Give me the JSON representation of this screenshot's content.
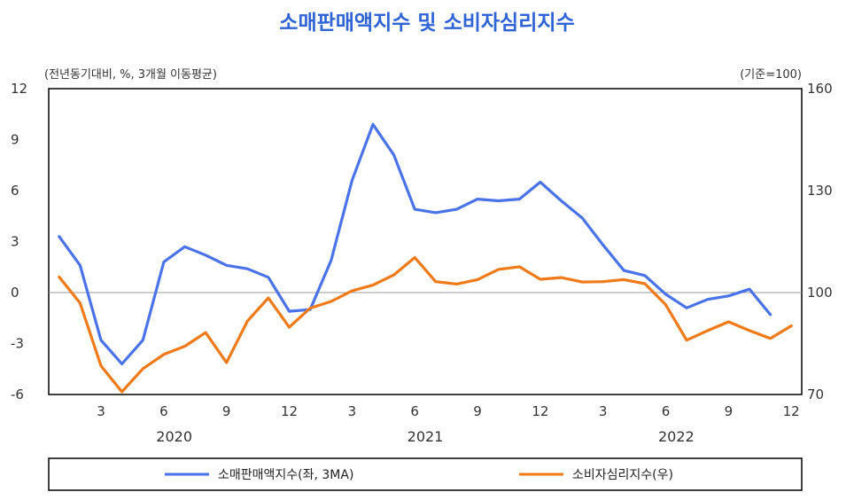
{
  "chart_data": {
    "type": "line",
    "title": "소매판매액지수 및 소비자심리지수",
    "left_unit": "(전년동기대비, %, 3개월 이동평균)",
    "right_unit": "(기준=100)",
    "x_tick_labels": [
      "3",
      "6",
      "9",
      "12",
      "3",
      "6",
      "9",
      "12",
      "3",
      "6",
      "9",
      "12"
    ],
    "x_tick_months": [
      3,
      6,
      9,
      12,
      15,
      18,
      21,
      24,
      27,
      30,
      33,
      36
    ],
    "year_labels": [
      {
        "label": "2020",
        "month": 6.5
      },
      {
        "label": "2021",
        "month": 18.5
      },
      {
        "label": "2022",
        "month": 30.5
      }
    ],
    "xlim": [
      0.5,
      36.5
    ],
    "y_left": {
      "ticks": [
        "12",
        "9",
        "6",
        "3",
        "0",
        "-3",
        "-6"
      ],
      "values": [
        12,
        9,
        6,
        3,
        0,
        -3,
        -6
      ],
      "ylim": [
        -6,
        12
      ]
    },
    "y_right": {
      "ticks": [
        "160",
        "130",
        "100",
        "70"
      ],
      "values": [
        160,
        130,
        100,
        70
      ],
      "ylim": [
        70,
        160
      ]
    },
    "grid": false,
    "zero_line": true,
    "legend_position": "bottom",
    "series": [
      {
        "name": "소매판매액지수(좌, 3MA)",
        "axis": "left",
        "color": "#4a73e8",
        "x": [
          1,
          2,
          3,
          4,
          5,
          6,
          7,
          8,
          9,
          10,
          11,
          12,
          13,
          14,
          15,
          16,
          17,
          18,
          19,
          20,
          21,
          22,
          23,
          24,
          25,
          26,
          27,
          28,
          29,
          30,
          31,
          32,
          33,
          34,
          35
        ],
        "values": [
          3.3,
          1.6,
          -2.8,
          -4.2,
          -2.8,
          1.8,
          2.7,
          2.2,
          1.6,
          1.4,
          0.9,
          -1.1,
          -1.0,
          1.9,
          6.6,
          9.9,
          8.1,
          4.9,
          4.7,
          4.9,
          5.5,
          5.4,
          5.5,
          6.5,
          5.4,
          4.4,
          2.8,
          1.3,
          1.0,
          -0.1,
          -0.9,
          -0.4,
          -0.2,
          0.2,
          -1.3
        ]
      },
      {
        "name": "소비자심리지수(우)",
        "axis": "right",
        "color": "#ef7a1a",
        "x": [
          1,
          2,
          3,
          4,
          5,
          6,
          7,
          8,
          9,
          10,
          11,
          12,
          13,
          14,
          15,
          16,
          17,
          18,
          19,
          20,
          21,
          22,
          23,
          24,
          25,
          26,
          27,
          28,
          29,
          30,
          31,
          32,
          33,
          34,
          35,
          36
        ],
        "values": [
          104.6,
          96.9,
          78.4,
          70.8,
          77.6,
          81.8,
          84.2,
          88.2,
          79.4,
          91.6,
          98.4,
          89.8,
          95.4,
          97.4,
          100.5,
          102.2,
          105.2,
          110.3,
          103.2,
          102.5,
          103.8,
          106.8,
          107.6,
          103.9,
          104.4,
          103.1,
          103.2,
          103.8,
          102.6,
          96.4,
          86.0,
          88.8,
          91.4,
          88.8,
          86.5,
          90.2
        ]
      }
    ]
  }
}
